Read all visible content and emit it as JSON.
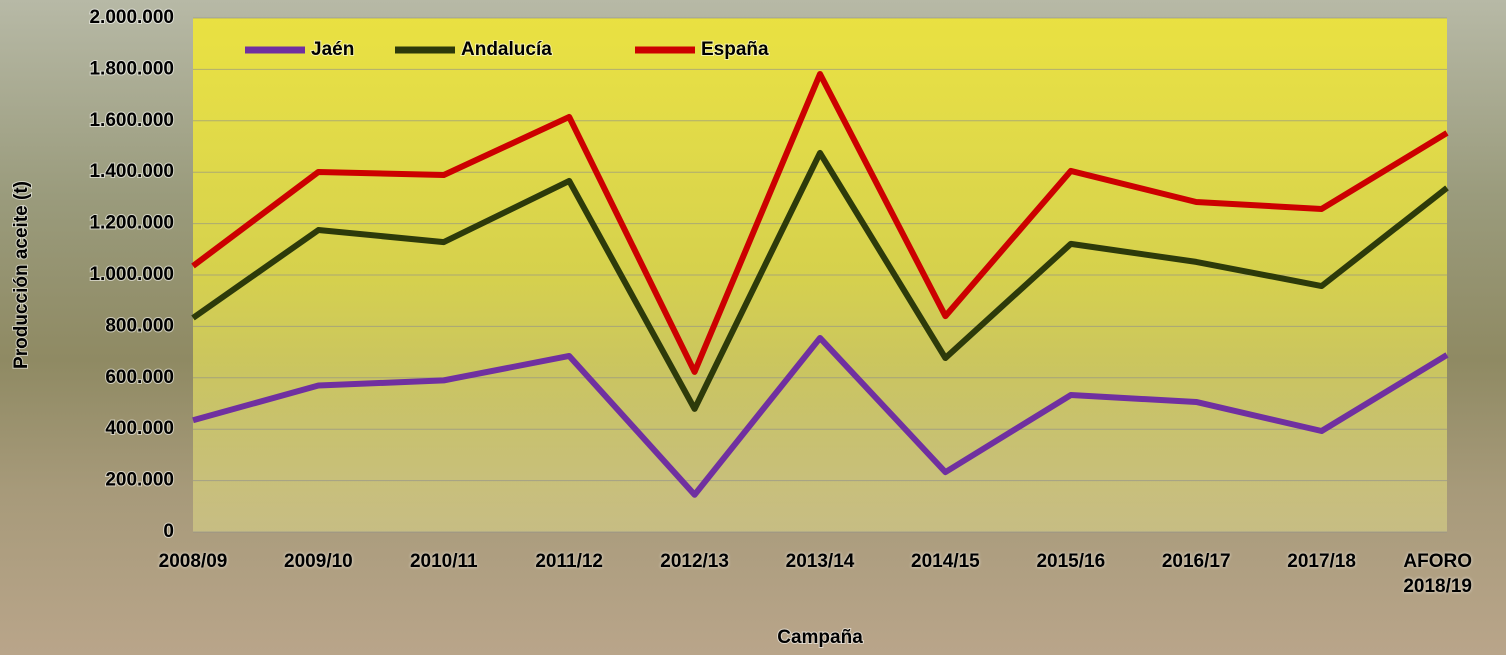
{
  "chart_data": {
    "type": "line",
    "x_label": "Campaña",
    "y_label": "Producción aceite (t)",
    "categories": [
      "2008/09",
      "2009/10",
      "2010/11",
      "2011/12",
      "2012/13",
      "2013/14",
      "2014/15",
      "2015/16",
      "2016/17",
      "2017/18",
      "AFORO 2018/19"
    ],
    "series": [
      {
        "name": "Jaén",
        "color": "#7030a0",
        "values": [
          435000,
          570000,
          590000,
          685000,
          145000,
          755000,
          233000,
          533000,
          506000,
          393000,
          689000
        ]
      },
      {
        "name": "Andalucía",
        "color": "#2d3a0a",
        "values": [
          833000,
          1175000,
          1128000,
          1366000,
          479000,
          1475000,
          677000,
          1121000,
          1051000,
          957000,
          1339000
        ]
      },
      {
        "name": "España",
        "color": "#cc0000",
        "values": [
          1035000,
          1401000,
          1389000,
          1615000,
          623000,
          1782000,
          840000,
          1405000,
          1284000,
          1257000,
          1553000
        ]
      }
    ],
    "ylim": [
      0,
      2000000
    ],
    "yticks": [
      0,
      {
        "value": 200000,
        "label": "200.000"
      },
      {
        "value": 400000,
        "label": "400.000"
      },
      {
        "value": 600000,
        "label": "600.000"
      },
      {
        "value": 800000,
        "label": "800.000"
      },
      {
        "value": 1000000,
        "label": "1.000.000"
      },
      {
        "value": 1200000,
        "label": "1.200.000"
      },
      {
        "value": 1400000,
        "label": "1.400.000"
      },
      {
        "value": 1600000,
        "label": "1.600.000"
      },
      {
        "value": 1800000,
        "label": "1.800.000"
      },
      {
        "value": 2000000,
        "label": "2.000.000"
      }
    ],
    "grid": true,
    "legend": "top-left"
  }
}
